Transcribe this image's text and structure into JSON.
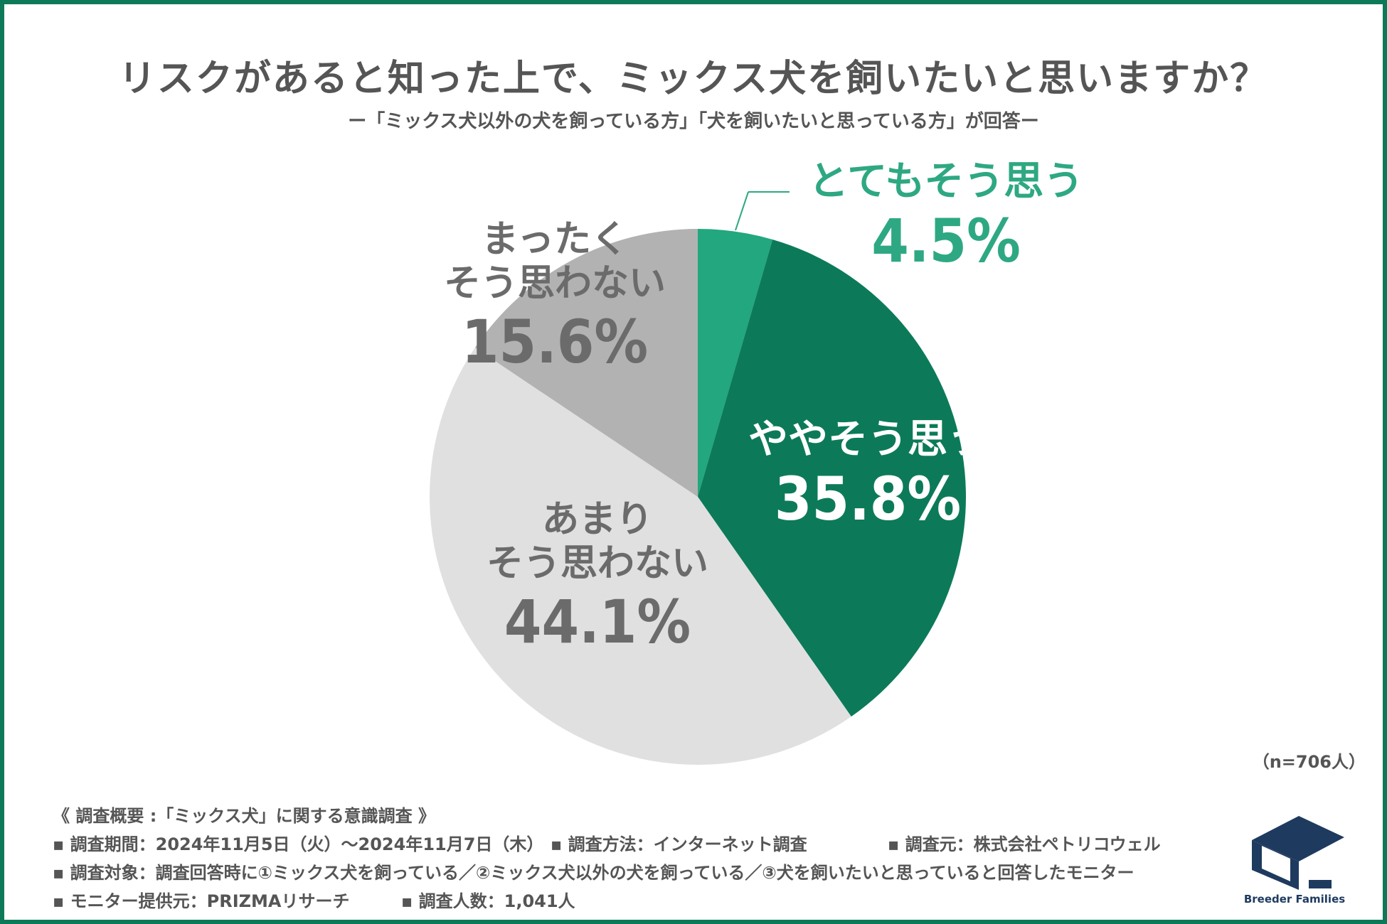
{
  "title": "リスクがあると知った上で、ミックス犬を飼いたいと思いますか？",
  "subtitle": "ー「ミックス犬以外の犬を飼っている方」「犬を飼いたいと思っている方」が回答ー",
  "sample": "（n=706人）",
  "chart_data": {
    "type": "pie",
    "categories": [
      "とてもそう思う",
      "ややそう思う",
      "あまりそう思わない",
      "まったくそう思わない"
    ],
    "values": [
      4.5,
      35.8,
      44.1,
      15.6
    ],
    "labels": [
      {
        "lines": [
          "とてもそう思う"
        ],
        "pct": "4.5%"
      },
      {
        "lines": [
          "ややそう思う"
        ],
        "pct": "35.8%"
      },
      {
        "lines": [
          "あまり",
          "そう思わない"
        ],
        "pct": "44.1%"
      },
      {
        "lines": [
          "まったく",
          "そう思わない"
        ],
        "pct": "15.6%"
      }
    ],
    "colors": [
      "#22a77e",
      "#0c7a58",
      "#e0e0e0",
      "#b2b2b2"
    ],
    "label_colors": [
      "#2ea882",
      "#ffffff",
      "#6b6b6b",
      "#6b6b6b"
    ]
  },
  "overview": {
    "heading": "《 調査概要 :「ミックス犬」に関する意識調査 》",
    "period": "調査期間：2024年11月5日（火）〜2024年11月7日（木）",
    "method": "調査方法：インターネット調査",
    "source": "調査元：株式会社ペトリコウェル",
    "target": "調査対象：調査回答時に①ミックス犬を飼っている／②ミックス犬以外の犬を飼っている／③犬を飼いたいと思っていると回答したモニター",
    "provider": "モニター提供元：PRIZMAリサーチ",
    "count": "調査人数：1,041人"
  },
  "logo": {
    "text": "Breeder Families",
    "color": "#1e3a5f"
  }
}
